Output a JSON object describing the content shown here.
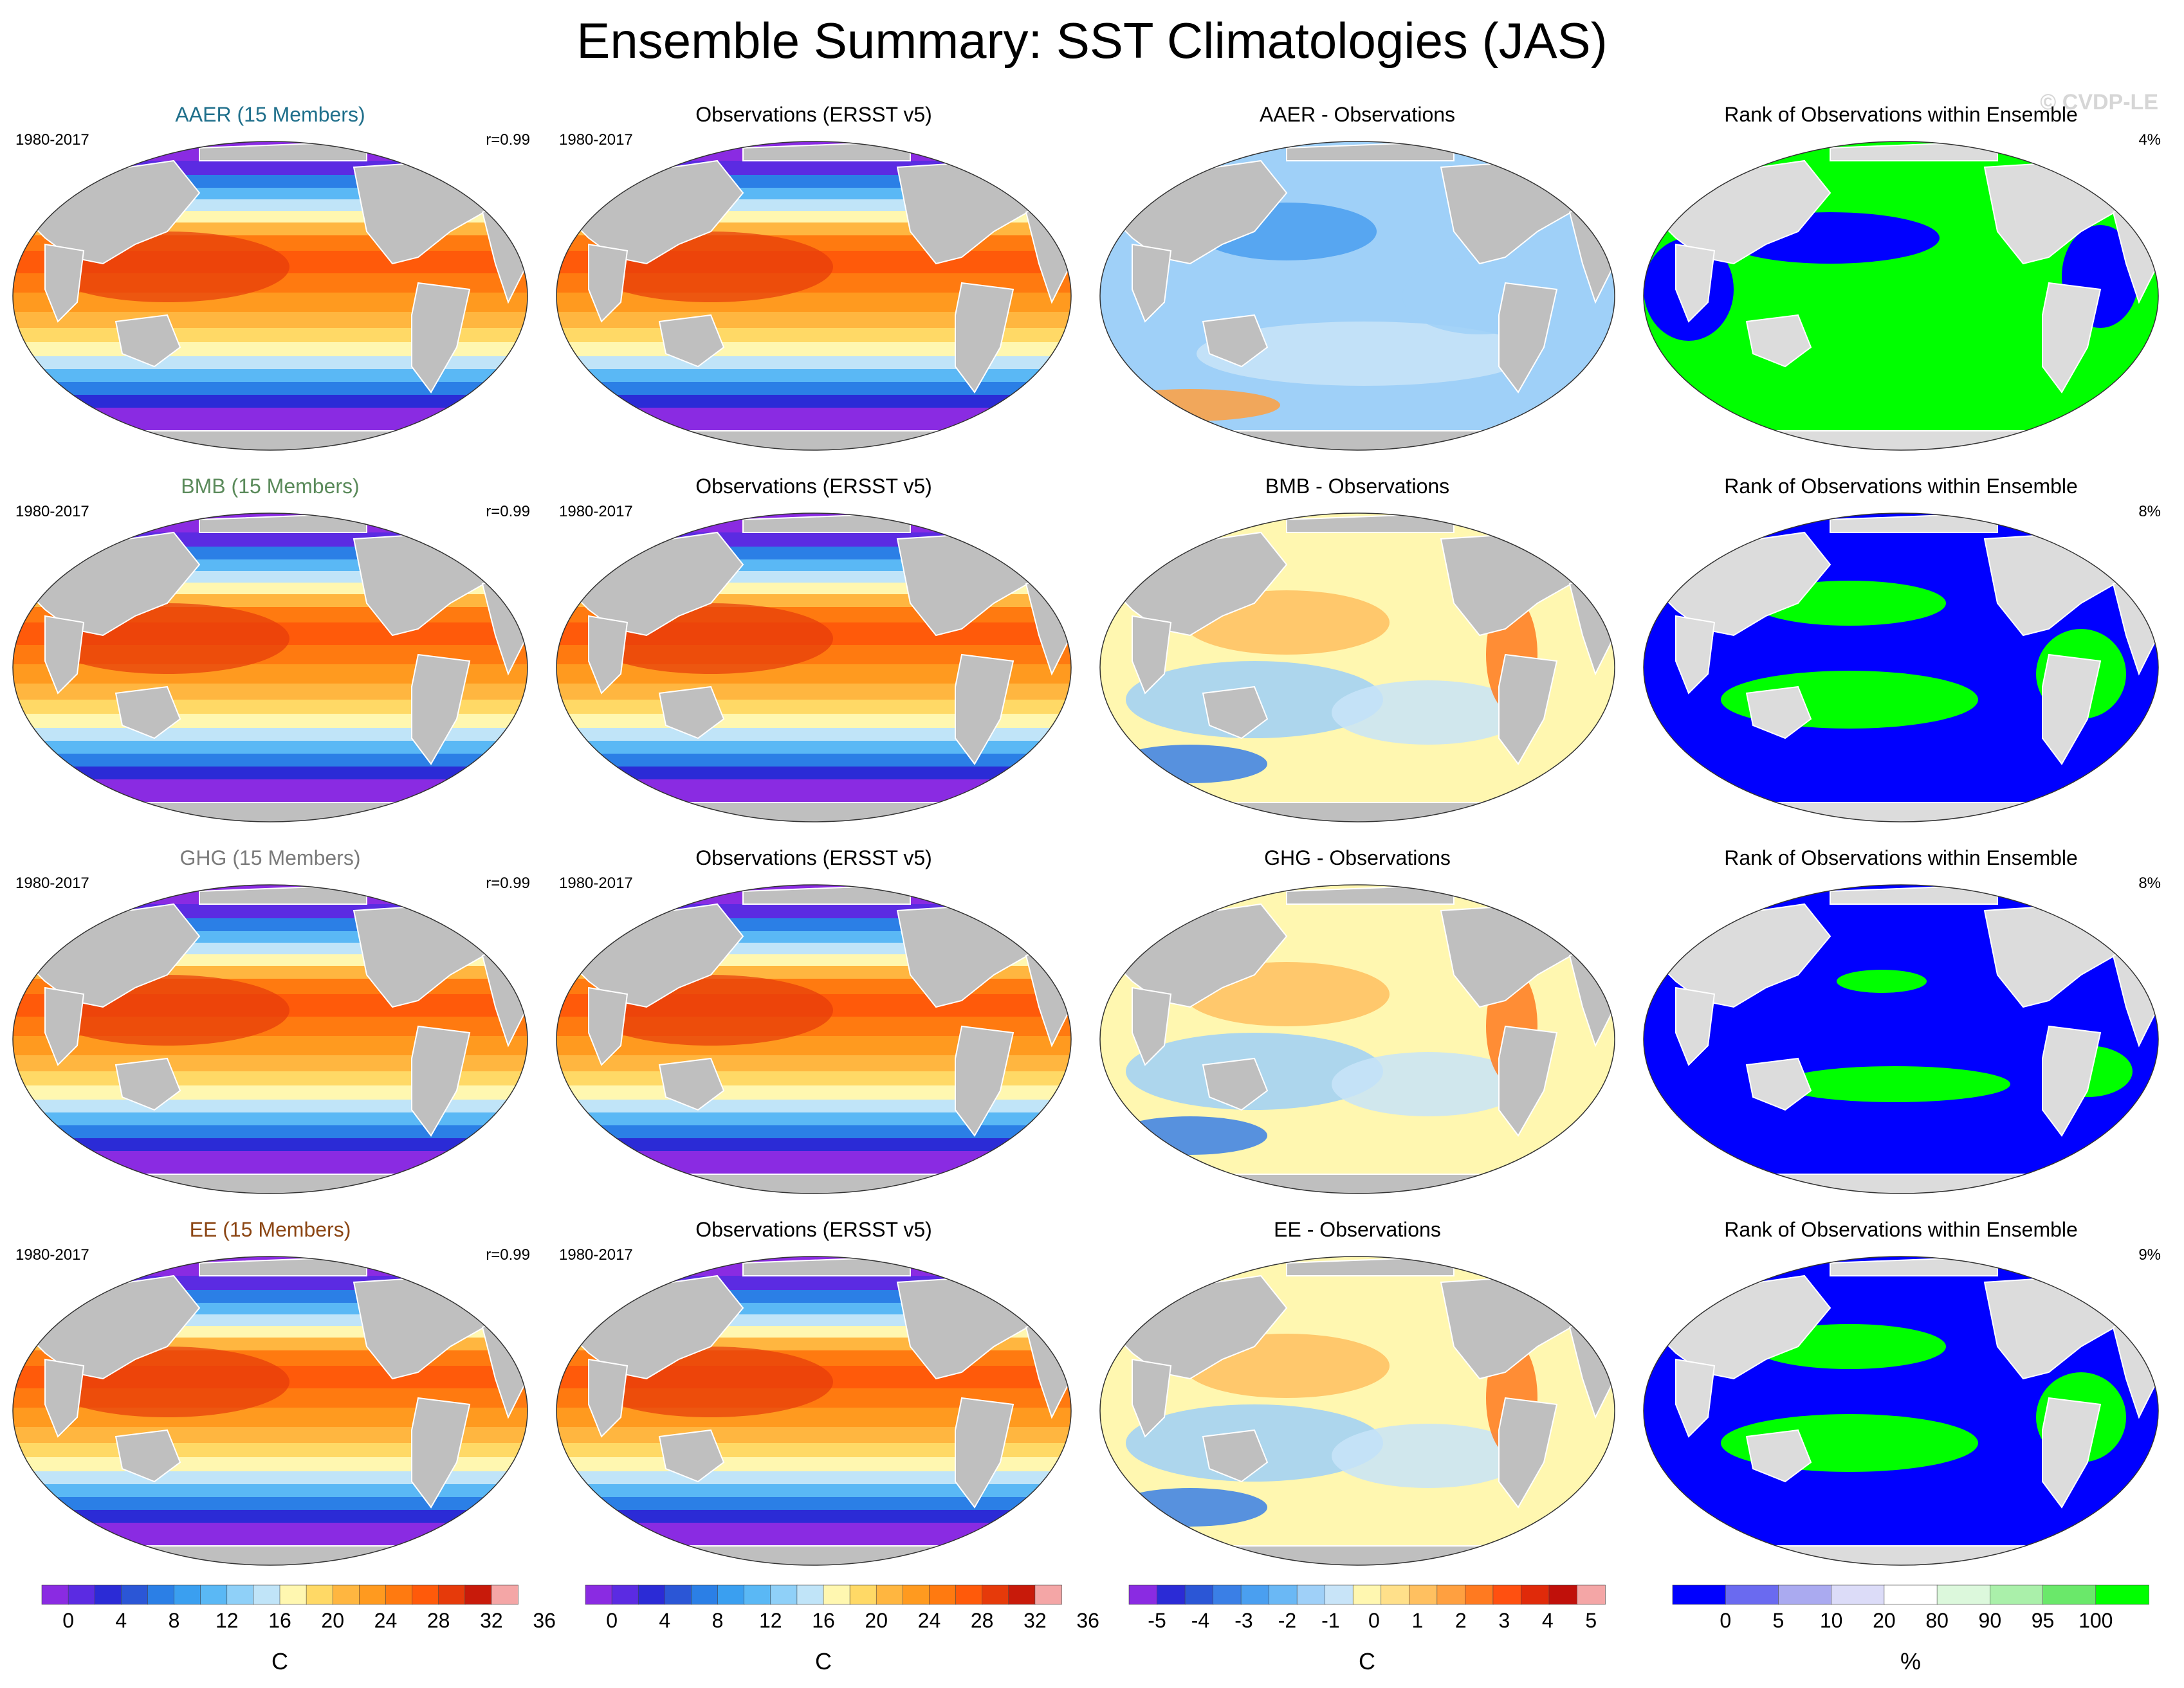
{
  "figure": {
    "title": "Ensemble Summary: SST Climatologies (JAS)",
    "watermark": "© CVDP-LE"
  },
  "rows": [
    {
      "model": {
        "title": "AAER (15 Members)",
        "title_color": "#1f6f8b",
        "period": "1980-2017",
        "corr": "r=0.99"
      },
      "obs": {
        "title": "Observations (ERSST v5)",
        "period": "1980-2017"
      },
      "diff": {
        "title": "AAER - Observations"
      },
      "rank": {
        "title": "Rank of Observations within Ensemble",
        "percent": "4%"
      }
    },
    {
      "model": {
        "title": "BMB (15 Members)",
        "title_color": "#5a8a5a",
        "period": "1980-2017",
        "corr": "r=0.99"
      },
      "obs": {
        "title": "Observations (ERSST v5)",
        "period": "1980-2017"
      },
      "diff": {
        "title": "BMB - Observations"
      },
      "rank": {
        "title": "Rank of Observations within Ensemble",
        "percent": "8%"
      }
    },
    {
      "model": {
        "title": "GHG (15 Members)",
        "title_color": "#7a7a7a",
        "period": "1980-2017",
        "corr": "r=0.99"
      },
      "obs": {
        "title": "Observations (ERSST v5)",
        "period": "1980-2017"
      },
      "diff": {
        "title": "GHG - Observations"
      },
      "rank": {
        "title": "Rank of Observations within Ensemble",
        "percent": "8%"
      }
    },
    {
      "model": {
        "title": "EE (15 Members)",
        "title_color": "#8b4513",
        "period": "1980-2017",
        "corr": "r=0.99"
      },
      "obs": {
        "title": "Observations (ERSST v5)",
        "period": "1980-2017"
      },
      "diff": {
        "title": "EE - Observations"
      },
      "rank": {
        "title": "Rank of Observations within Ensemble",
        "percent": "9%"
      }
    }
  ],
  "colorbars": [
    {
      "id": "sst1",
      "unit": "C",
      "colors": [
        "#8a2be2",
        "#5b2be2",
        "#2b2bd6",
        "#2b56d6",
        "#2b7fe6",
        "#3a9ff0",
        "#5ab8f5",
        "#8fd0f8",
        "#c0e4f8",
        "#fff7b0",
        "#ffd966",
        "#ffb640",
        "#ff9a1f",
        "#ff7a10",
        "#ff5a0a",
        "#e63a0a",
        "#c81a0a",
        "#f4a6a6"
      ],
      "labels": [
        "0",
        "4",
        "8",
        "12",
        "16",
        "20",
        "24",
        "28",
        "32",
        "36"
      ]
    },
    {
      "id": "sst2",
      "unit": "C",
      "colors": [
        "#8a2be2",
        "#5b2be2",
        "#2b2bd6",
        "#2b56d6",
        "#2b7fe6",
        "#3a9ff0",
        "#5ab8f5",
        "#8fd0f8",
        "#c0e4f8",
        "#fff7b0",
        "#ffd966",
        "#ffb640",
        "#ff9a1f",
        "#ff7a10",
        "#ff5a0a",
        "#e63a0a",
        "#c81a0a",
        "#f4a6a6"
      ],
      "labels": [
        "0",
        "4",
        "8",
        "12",
        "16",
        "20",
        "24",
        "28",
        "32",
        "36"
      ]
    },
    {
      "id": "diff",
      "unit": "C",
      "colors": [
        "#8a2be2",
        "#2b2bd6",
        "#2b56d6",
        "#3a7fe6",
        "#4a9ff0",
        "#6ab8f5",
        "#9fd0f8",
        "#c8e4f8",
        "#fff7b0",
        "#ffe08a",
        "#ffc060",
        "#ffa040",
        "#ff7a20",
        "#ff5010",
        "#e02a0a",
        "#c0100a",
        "#f4a6a6"
      ],
      "labels": [
        "-5",
        "-4",
        "-3",
        "-2",
        "-1",
        "0",
        "1",
        "2",
        "3",
        "4",
        "5"
      ]
    },
    {
      "id": "rank",
      "unit": "%",
      "colors": [
        "#0000ff",
        "#6a6af0",
        "#aaaaf0",
        "#dcdcf8",
        "#ffffff",
        "#dcf8dc",
        "#aaf0aa",
        "#6ae86a",
        "#00ff00"
      ],
      "labels": [
        "0",
        "5",
        "10",
        "20",
        "80",
        "90",
        "95",
        "100"
      ]
    }
  ],
  "legend_colors": {
    "land": "#bfbfbf",
    "rank_land": "#dcdcdc",
    "rank_low": "#0000ff",
    "rank_high": "#00ff00"
  }
}
